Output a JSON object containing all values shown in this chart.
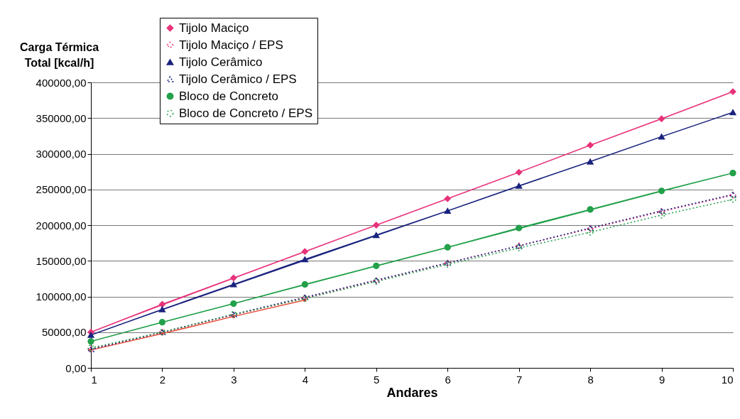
{
  "chart_data": {
    "type": "line",
    "xlabel": "Andares",
    "ylabel": "Carga Térmica Total [kcal/h]",
    "x": [
      1,
      2,
      3,
      4,
      5,
      6,
      7,
      8,
      9,
      10
    ],
    "xlim": [
      1,
      10
    ],
    "xticks": [
      1,
      2,
      3,
      4,
      5,
      6,
      7,
      8,
      9,
      10
    ],
    "ylim": [
      0,
      400000
    ],
    "yticks": [
      {
        "value": 0,
        "label": "0,00"
      },
      {
        "value": 50000,
        "label": "50000,00"
      },
      {
        "value": 100000,
        "label": "100000,00"
      },
      {
        "value": 150000,
        "label": "150000,00"
      },
      {
        "value": 200000,
        "label": "200000,00"
      },
      {
        "value": 250000,
        "label": "250000,00"
      },
      {
        "value": 300000,
        "label": "300000,00"
      },
      {
        "value": 350000,
        "label": "350000,00"
      },
      {
        "value": 400000,
        "label": "400000,00"
      }
    ],
    "grid": "y",
    "legend": "top left",
    "series": [
      {
        "name": "Tijolo Maciço",
        "color": "#e8327a",
        "marker": "diamond",
        "line_style": "solid",
        "values": [
          50000,
          89000,
          126000,
          163000,
          200000,
          237000,
          274000,
          312000,
          349000,
          387000
        ]
      },
      {
        "name": "Tijolo Maciço / EPS",
        "color": "#e8327a",
        "marker": "diamond",
        "line_style": "dotted",
        "values": [
          26000,
          50000,
          74000,
          98000,
          122000,
          147000,
          171000,
          195000,
          219000,
          242000
        ]
      },
      {
        "name": "Tijolo Cerâmico",
        "color": "#1a237e",
        "marker": "triangle",
        "line_style": "solid",
        "values": [
          46000,
          82000,
          117000,
          152000,
          186000,
          220000,
          255000,
          289000,
          324000,
          358000
        ]
      },
      {
        "name": "Tijolo Cerâmico / EPS",
        "color": "#1a237e",
        "marker": "triangle",
        "line_style": "dotted",
        "values": [
          26000,
          50000,
          75000,
          99000,
          123000,
          147000,
          171000,
          196000,
          220000,
          243000
        ]
      },
      {
        "name": "Bloco de Concreto",
        "color": "#22a04a",
        "marker": "circle",
        "line_style": "solid",
        "values": [
          37000,
          64000,
          90000,
          117000,
          143000,
          169000,
          196000,
          222000,
          248000,
          273000
        ]
      },
      {
        "name": "Bloco de Concreto / EPS",
        "color": "#22a04a",
        "marker": "circle",
        "line_style": "dotted",
        "values": [
          28000,
          50000,
          75000,
          97000,
          121000,
          145000,
          168000,
          190000,
          214000,
          236000
        ]
      },
      {
        "color": "#e8503a",
        "marker": "square",
        "line_style": "solid",
        "x": [
          1,
          2,
          3,
          4
        ],
        "values": [
          25000,
          48000,
          72000,
          95000
        ]
      }
    ]
  }
}
